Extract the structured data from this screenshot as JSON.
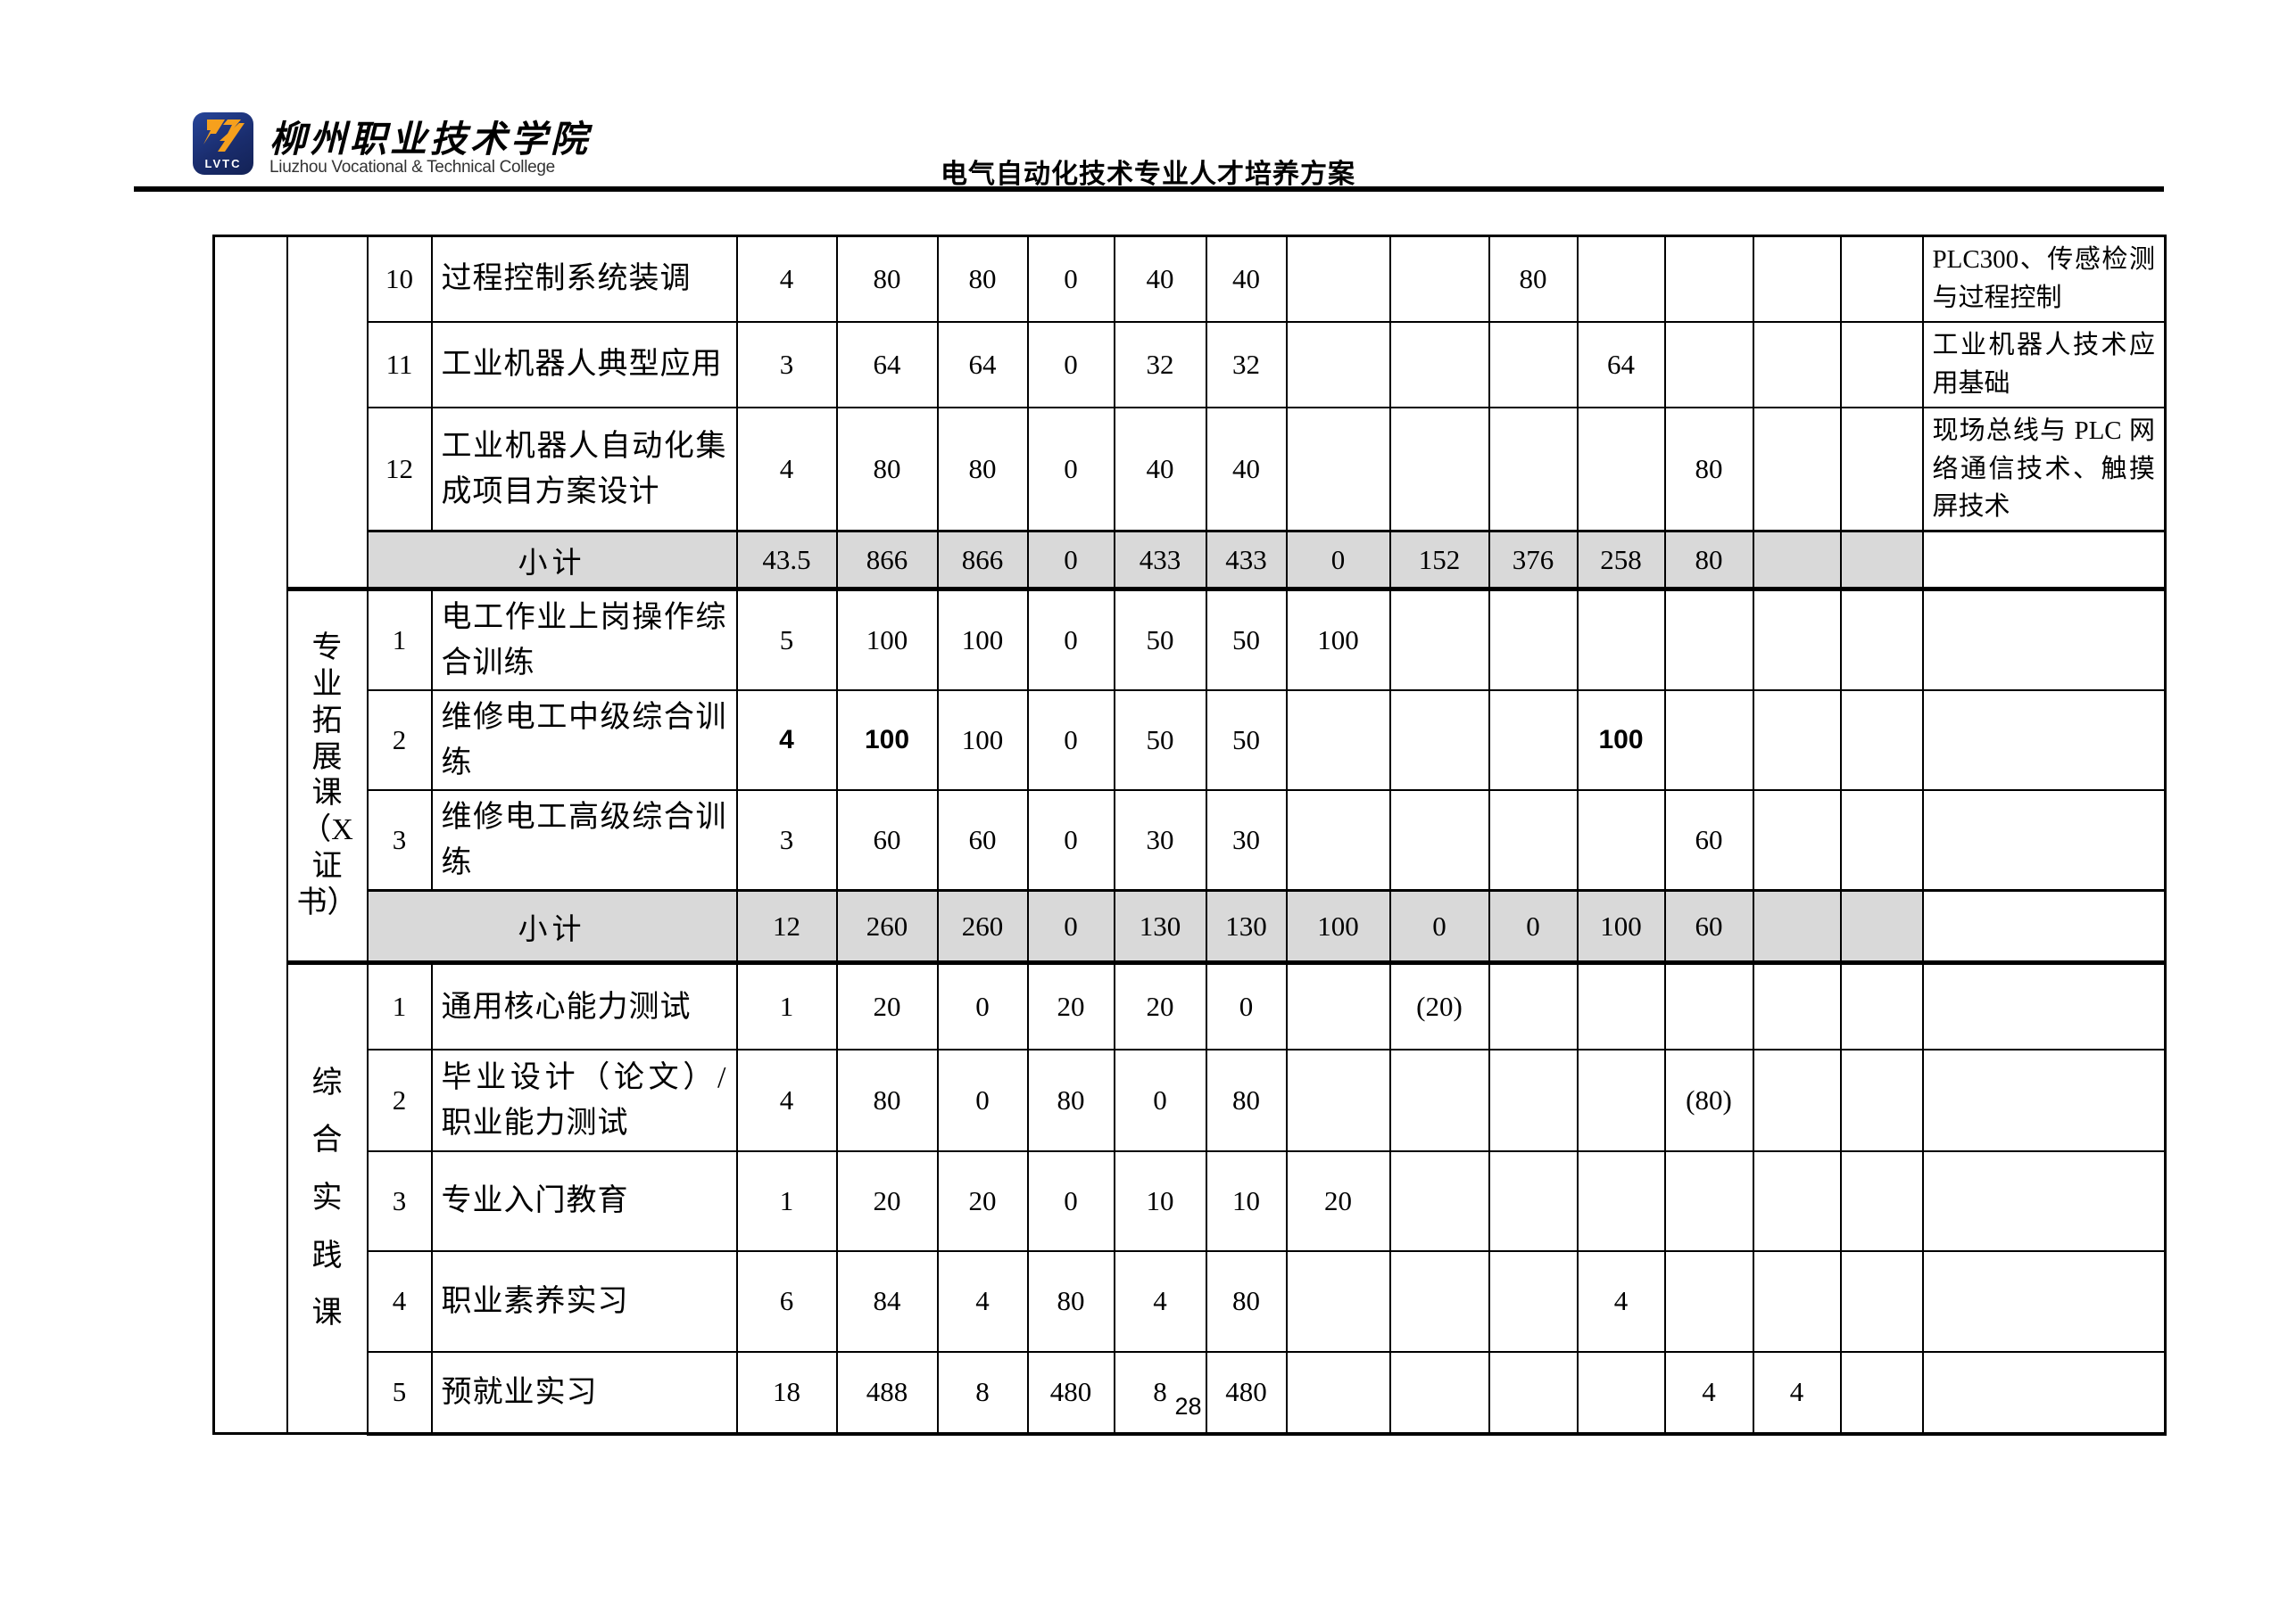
{
  "header": {
    "logo_abbr": "LVTC",
    "college_cn": "柳州职业技术学院",
    "college_en": "Liuzhou Vocational & Technical College",
    "doc_title": "电气自动化技术专业人才培养方案",
    "logo_blue": "#1a2d6e",
    "logo_orange": "#f6a01d"
  },
  "table": {
    "subtotal_row_color": "#d9d9d9",
    "sections": [
      {
        "category": "",
        "rows": [
          {
            "no": "10",
            "name": "过程控制系统装调",
            "vals": [
              "4",
              "80",
              "80",
              "0",
              "40",
              "40",
              "",
              "",
              "80",
              "",
              "",
              "",
              ""
            ],
            "remark": "PLC300、传感检测与过程控制"
          },
          {
            "no": "11",
            "name": "工业机器人典型应用",
            "vals": [
              "3",
              "64",
              "64",
              "0",
              "32",
              "32",
              "",
              "",
              "",
              "64",
              "",
              "",
              ""
            ],
            "remark": "工业机器人技术应用基础"
          },
          {
            "no": "12",
            "name": "工业机器人自动化集成项目方案设计",
            "vals": [
              "4",
              "80",
              "80",
              "0",
              "40",
              "40",
              "",
              "",
              "",
              "",
              "80",
              "",
              ""
            ],
            "remark": "现场总线与 PLC 网络通信技术、触摸屏技术"
          }
        ],
        "subtotal": {
          "label": "小计",
          "vals": [
            "43.5",
            "866",
            "866",
            "0",
            "433",
            "433",
            "0",
            "152",
            "376",
            "258",
            "80",
            "",
            ""
          ],
          "remark": ""
        }
      },
      {
        "category": "专\n业\n拓\n展\n课\n（X\n证\n书）",
        "rows": [
          {
            "no": "1",
            "name": "电工作业上岗操作综合训练",
            "vals": [
              "5",
              "100",
              "100",
              "0",
              "50",
              "50",
              "100",
              "",
              "",
              "",
              "",
              "",
              ""
            ],
            "remark": ""
          },
          {
            "no": "2",
            "name": "维修电工中级综合训练",
            "vals": [
              "4",
              "100",
              "100",
              "0",
              "50",
              "50",
              "",
              "",
              "",
              "100",
              "",
              "",
              ""
            ],
            "remark": "",
            "bold_cells": [
              0,
              1,
              9
            ]
          },
          {
            "no": "3",
            "name": "维修电工高级综合训练",
            "vals": [
              "3",
              "60",
              "60",
              "0",
              "30",
              "30",
              "",
              "",
              "",
              "",
              "60",
              "",
              ""
            ],
            "remark": ""
          }
        ],
        "subtotal": {
          "label": "小计",
          "vals": [
            "12",
            "260",
            "260",
            "0",
            "130",
            "130",
            "100",
            "0",
            "0",
            "100",
            "60",
            "",
            ""
          ],
          "remark": ""
        }
      },
      {
        "category": "综\n合\n实\n践\n课",
        "rows": [
          {
            "no": "1",
            "name": "通用核心能力测试",
            "vals": [
              "1",
              "20",
              "0",
              "20",
              "20",
              "0",
              "",
              "(20)",
              "",
              "",
              "",
              "",
              ""
            ],
            "remark": ""
          },
          {
            "no": "2",
            "name": "毕业设计（论文）/职业能力测试",
            "vals": [
              "4",
              "80",
              "0",
              "80",
              "0",
              "80",
              "",
              "",
              "",
              "",
              "(80)",
              "",
              ""
            ],
            "remark": ""
          },
          {
            "no": "3",
            "name": "专业入门教育",
            "vals": [
              "1",
              "20",
              "20",
              "0",
              "10",
              "10",
              "20",
              "",
              "",
              "",
              "",
              "",
              ""
            ],
            "remark": ""
          },
          {
            "no": "4",
            "name": "职业素养实习",
            "vals": [
              "6",
              "84",
              "4",
              "80",
              "4",
              "80",
              "",
              "",
              "",
              "4",
              "",
              "",
              ""
            ],
            "remark": ""
          },
          {
            "no": "5",
            "name": "预就业实习",
            "vals": [
              "18",
              "488",
              "8",
              "480",
              "8",
              "480",
              "",
              "",
              "",
              "",
              "4",
              "4",
              ""
            ],
            "remark": ""
          }
        ]
      }
    ]
  },
  "footer": {
    "page_number": "28"
  }
}
